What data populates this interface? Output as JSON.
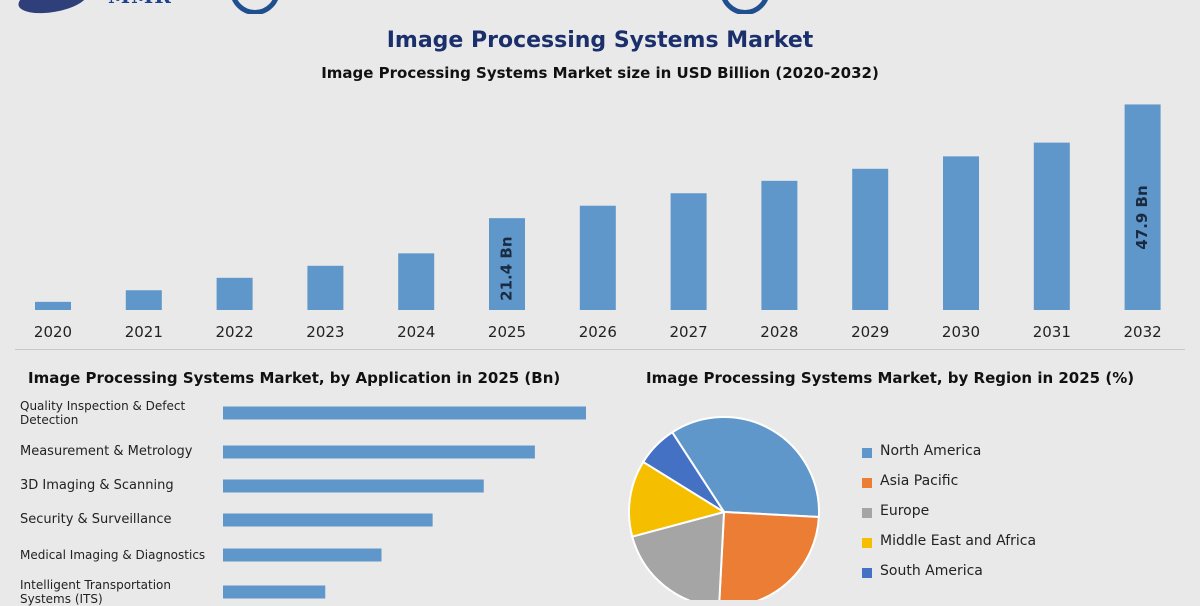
{
  "logo": {
    "text": "MMR"
  },
  "header": {
    "title": "Image Processing Systems Market",
    "subtitle": "Image Processing Systems Market size in USD Billion (2020-2032)"
  },
  "colors": {
    "bar": "#5f97cb",
    "title": "#1b2f6d",
    "background": "#e9e9e9"
  },
  "chart_data": [
    {
      "type": "bar",
      "title": "Image Processing Systems Market",
      "subtitle": "Image Processing Systems Market size in USD Billion (2020-2032)",
      "categories": [
        "2020",
        "2021",
        "2022",
        "2023",
        "2024",
        "2025",
        "2026",
        "2027",
        "2028",
        "2029",
        "2030",
        "2031",
        "2032"
      ],
      "values": [
        1.9,
        4.6,
        7.5,
        10.3,
        13.2,
        21.4,
        24.3,
        27.2,
        30.1,
        32.9,
        35.8,
        39.0,
        47.9
      ],
      "data_labels": [
        {
          "category": "2025",
          "text": "21.4 Bn"
        },
        {
          "category": "2032",
          "text": "47.9 Bn"
        }
      ],
      "ylim": [
        0,
        48
      ],
      "grid": false,
      "xlabel": "",
      "ylabel": ""
    },
    {
      "type": "bar",
      "orientation": "horizontal",
      "title": "Image Processing Systems Market, by Application in 2025 (Bn)",
      "categories": [
        "Quality Inspection & Defect Detection",
        "Measurement & Metrology",
        "3D Imaging & Scanning",
        "Security & Surveillance",
        "Medical Imaging & Diagnostics",
        "Intelligent Transportation Systems (ITS)"
      ],
      "values": [
        7.1,
        6.1,
        5.1,
        4.1,
        3.1,
        2.0
      ],
      "xlim": [
        0,
        7.1
      ],
      "grid": false
    },
    {
      "type": "pie",
      "title": "Image Processing Systems Market, by Region in 2025 (%)",
      "labels": [
        "North America",
        "Asia Pacific",
        "Europe",
        "Middle East and Africa",
        "South America"
      ],
      "values": [
        35,
        25,
        20,
        13,
        7
      ],
      "colors": [
        "#5f97cb",
        "#eb7d34",
        "#a5a5a5",
        "#f5bf00",
        "#4471c4"
      ],
      "legend_position": "right"
    }
  ]
}
